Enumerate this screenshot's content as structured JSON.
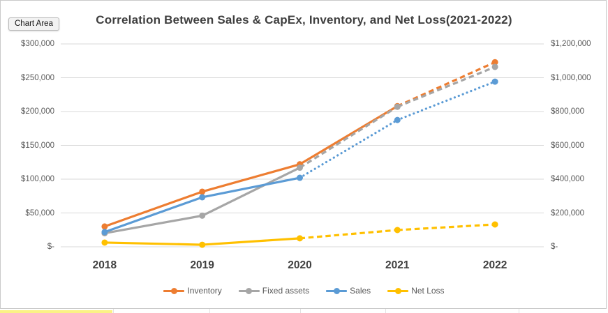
{
  "window": {
    "tooltip_label": "Chart Area"
  },
  "chart_data": {
    "type": "line",
    "title": "Correlation Between Sales & CapEx, Inventory, and Net Loss(2021-2022)",
    "categories": [
      "2018",
      "2019",
      "2020",
      "2021",
      "2022"
    ],
    "grid": true,
    "legend_position": "bottom",
    "axes": {
      "left": {
        "min": 0,
        "max": 300000,
        "ticks": [
          "$300,000",
          "$250,000",
          "$200,000",
          "$150,000",
          "$100,000",
          "$50,000",
          "$-"
        ]
      },
      "right": {
        "min": 0,
        "max": 1200000,
        "ticks": [
          "$1,200,000",
          "$1,000,000",
          "$800,000",
          "$600,000",
          "$400,000",
          "$200,000",
          "$-"
        ]
      }
    },
    "series": [
      {
        "name": "Inventory",
        "axis": "left",
        "color": "#ED7D31",
        "values": [
          30000,
          81500,
          122000,
          208000,
          273000
        ],
        "solid_until_index": 3,
        "forecast_style": "dashed"
      },
      {
        "name": "Fixed assets",
        "axis": "left",
        "color": "#A6A6A6",
        "values": [
          20000,
          46000,
          117000,
          207000,
          266000
        ],
        "solid_until_index": 2,
        "forecast_style": "dashed"
      },
      {
        "name": "Sales",
        "axis": "right",
        "color": "#5B9BD5",
        "values": [
          87000,
          293000,
          408000,
          750000,
          977000
        ],
        "solid_until_index": 2,
        "forecast_style": "dotted"
      },
      {
        "name": "Net Loss",
        "axis": "right",
        "color": "#FFC000",
        "values": [
          25000,
          12000,
          50000,
          99000,
          132000
        ],
        "solid_until_index": 2,
        "forecast_style": "dashed"
      }
    ],
    "colors": {
      "gridline": "#d9d9d9",
      "title_text": "#3f3f3f",
      "axis_text": "#595959",
      "category_text": "#404040"
    }
  },
  "worksheet": {
    "highlight_color": "#FBF285"
  }
}
